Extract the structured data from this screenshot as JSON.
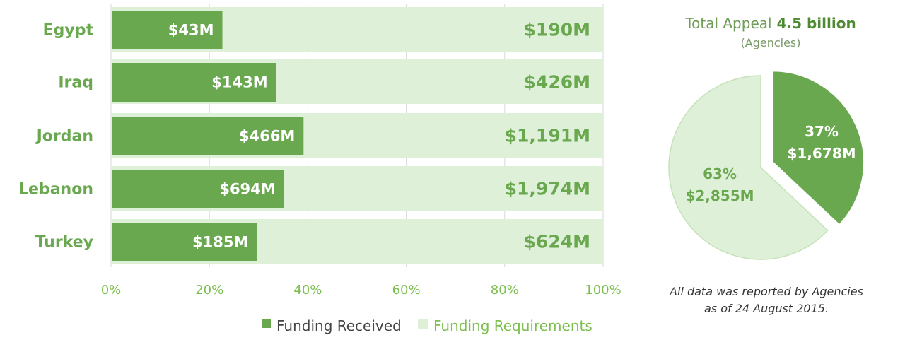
{
  "colors": {
    "received": "#6aa84f",
    "requirements": "#dff0d8",
    "requirements_border": "#c5e2b8",
    "grid": "#d9d9d9"
  },
  "chart_data": [
    {
      "type": "bar",
      "orientation": "horizontal",
      "stacked": "percent",
      "categories": [
        "Egypt",
        "Iraq",
        "Jordan",
        "Lebanon",
        "Turkey"
      ],
      "series": [
        {
          "name": "Funding Received",
          "values": [
            43,
            143,
            466,
            694,
            185
          ],
          "labels": [
            "$43M",
            "$143M",
            "$466M",
            "$694M",
            "$185M"
          ]
        },
        {
          "name": "Funding Requirements",
          "values": [
            190,
            426,
            1191,
            1974,
            624
          ],
          "labels": [
            "$190M",
            "$426M",
            "$1,191M",
            "$1,974M",
            "$624M"
          ]
        }
      ],
      "xlim": [
        0,
        100
      ],
      "x_ticks": [
        "0%",
        "20%",
        "40%",
        "60%",
        "80%",
        "100%"
      ],
      "grid": true,
      "legend": "bottom"
    },
    {
      "type": "pie",
      "title_prefix": "Total Appeal",
      "title_bold": "4.5 billion",
      "subtitle": "(Agencies)",
      "slices": [
        {
          "name": "Funding Received",
          "value": 1678,
          "percent_label": "37%",
          "value_label": "$1,678M"
        },
        {
          "name": "Funding Requirements",
          "value": 2855,
          "percent_label": "63%",
          "value_label": "$2,855M"
        }
      ]
    }
  ],
  "note": {
    "line1": "All data was reported by Agencies",
    "line2": "as of 24 August 2015."
  }
}
